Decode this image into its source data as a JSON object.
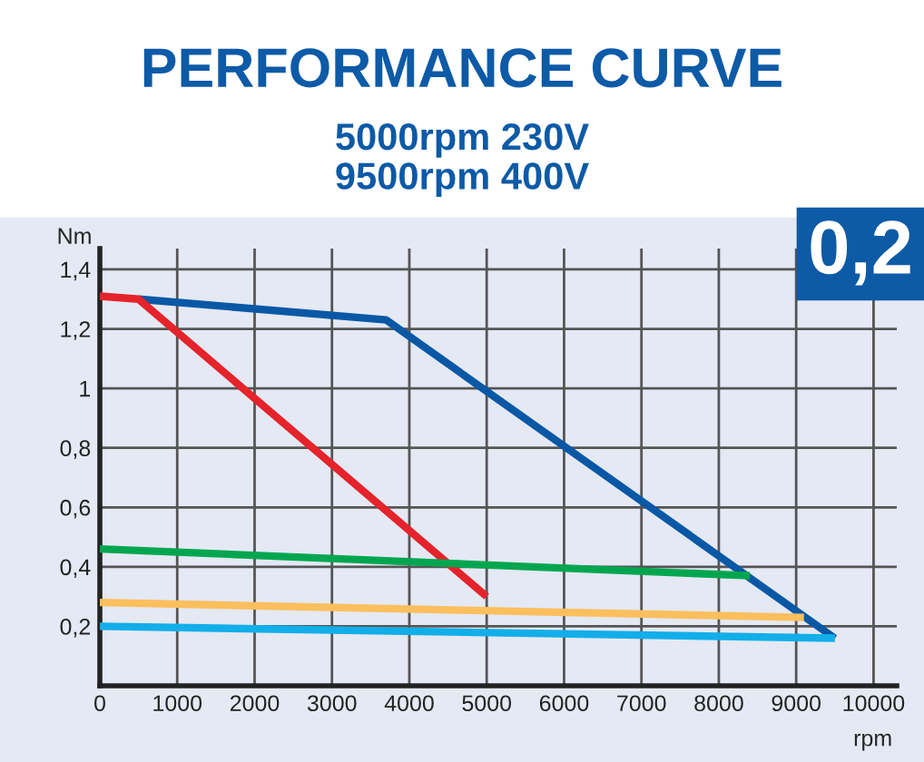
{
  "chart_data": {
    "type": "line",
    "title": "PERFORMANCE CURVE",
    "subtitle": "5000rpm 230V\n9500rpm 400V",
    "xlabel": "rpm",
    "ylabel": "Nm",
    "annotations": [
      "0,2"
    ],
    "xlim": [
      0,
      10300
    ],
    "ylim": [
      0,
      1.47
    ],
    "xticks": [
      0,
      1000,
      2000,
      3000,
      4000,
      5000,
      6000,
      7000,
      8000,
      9000,
      10000
    ],
    "yticks": [
      {
        "value": 0.2,
        "label": "0,2"
      },
      {
        "value": 0.4,
        "label": "0,4"
      },
      {
        "value": 0.6,
        "label": "0,6"
      },
      {
        "value": 0.8,
        "label": "0,8"
      },
      1,
      {
        "value": 1.2,
        "label": "1,2"
      },
      {
        "value": 1.4,
        "label": "1,4"
      }
    ],
    "grid": true,
    "legend": false,
    "marker": "none",
    "line_style": "solid",
    "series": [
      {
        "color": "#0a58a5",
        "x": [
          500,
          3700,
          9500
        ],
        "values": [
          1.3,
          1.23,
          0.16
        ]
      },
      {
        "color": "#e5232b",
        "x": [
          0,
          500,
          5000
        ],
        "values": [
          1.31,
          1.3,
          0.3
        ]
      },
      {
        "color": "#00a64f",
        "x": [
          0,
          8400
        ],
        "values": [
          0.46,
          0.37
        ]
      },
      {
        "color": "#fbbf5e",
        "x": [
          0,
          9100
        ],
        "values": [
          0.28,
          0.23
        ]
      },
      {
        "color": "#12aee9",
        "x": [
          0,
          9500
        ],
        "values": [
          0.2,
          0.16
        ]
      }
    ]
  }
}
